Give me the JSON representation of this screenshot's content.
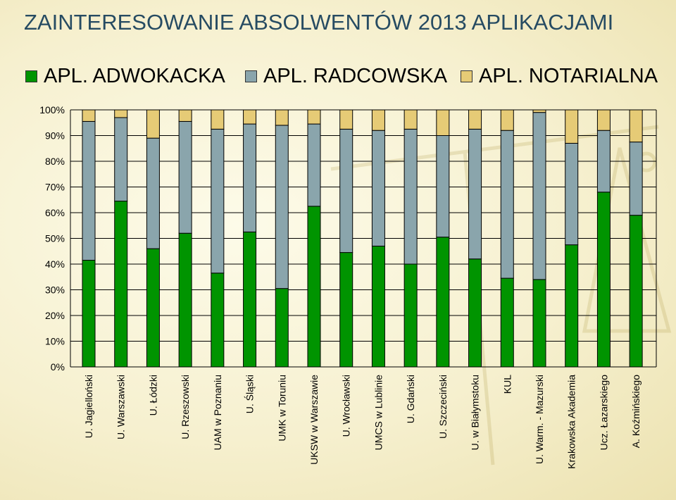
{
  "title": "ZAINTERESOWANIE ABSOLWENTÓW 2013 APLIKACJAMI",
  "colors": {
    "adwokacka": "#009400",
    "radcowska": "#8aa5ac",
    "notarialna": "#e6cb76",
    "title": "#264b62"
  },
  "legend": [
    {
      "label": "APL. ADWOKACKA",
      "color_key": "adwokacka"
    },
    {
      "label": "APL. RADCOWSKA",
      "color_key": "radcowska"
    },
    {
      "label": "APL. NOTARIALNA",
      "color_key": "notarialna"
    }
  ],
  "chart_data": {
    "type": "bar",
    "stacked": true,
    "title": "ZAINTERESOWANIE ABSOLWENTÓW 2013 APLIKACJAMI",
    "legend_position": "top",
    "grid": true,
    "ylim": [
      0,
      100
    ],
    "y_ticks": [
      "0%",
      "10%",
      "20%",
      "30%",
      "40%",
      "50%",
      "60%",
      "70%",
      "80%",
      "90%",
      "100%"
    ],
    "categories": [
      "U. Jagielloński",
      "U. Warszawski",
      "U. Łódzki",
      "U. Rzeszowski",
      "UAM w Poznaniu",
      "U. Śląski",
      "UMK w Toruniu",
      "UKSW w Warszawie",
      "U. Wrocławski",
      "UMCS w Lublinie",
      "U. Gdański",
      "U. Szczeciński",
      "U. w Białymstoku",
      "KUL",
      "U. Warm. - Mazurski",
      "Krakowska Akademia",
      "Ucz. Łazarskiego",
      "A. Koźmińskiego"
    ],
    "series": [
      {
        "name": "APL. ADWOKACKA",
        "color_key": "adwokacka",
        "values": [
          41.5,
          64.5,
          46,
          52,
          36.5,
          52.5,
          30.5,
          62.5,
          44.5,
          47,
          40,
          50.5,
          42,
          34.5,
          34,
          47.5,
          68,
          59
        ]
      },
      {
        "name": "APL. RADCOWSKA",
        "color_key": "radcowska",
        "values": [
          54,
          32.5,
          43,
          43.5,
          56,
          42,
          63.5,
          32,
          48,
          45,
          52.5,
          39.5,
          50.5,
          57.5,
          65,
          39.5,
          24,
          28.5
        ]
      },
      {
        "name": "APL. NOTARIALNA",
        "color_key": "notarialna",
        "values": [
          4.5,
          3,
          11,
          4.5,
          7.5,
          5.5,
          6,
          5.5,
          7.5,
          8,
          7.5,
          10,
          7.5,
          8,
          1,
          13,
          8,
          12.5
        ]
      }
    ]
  }
}
